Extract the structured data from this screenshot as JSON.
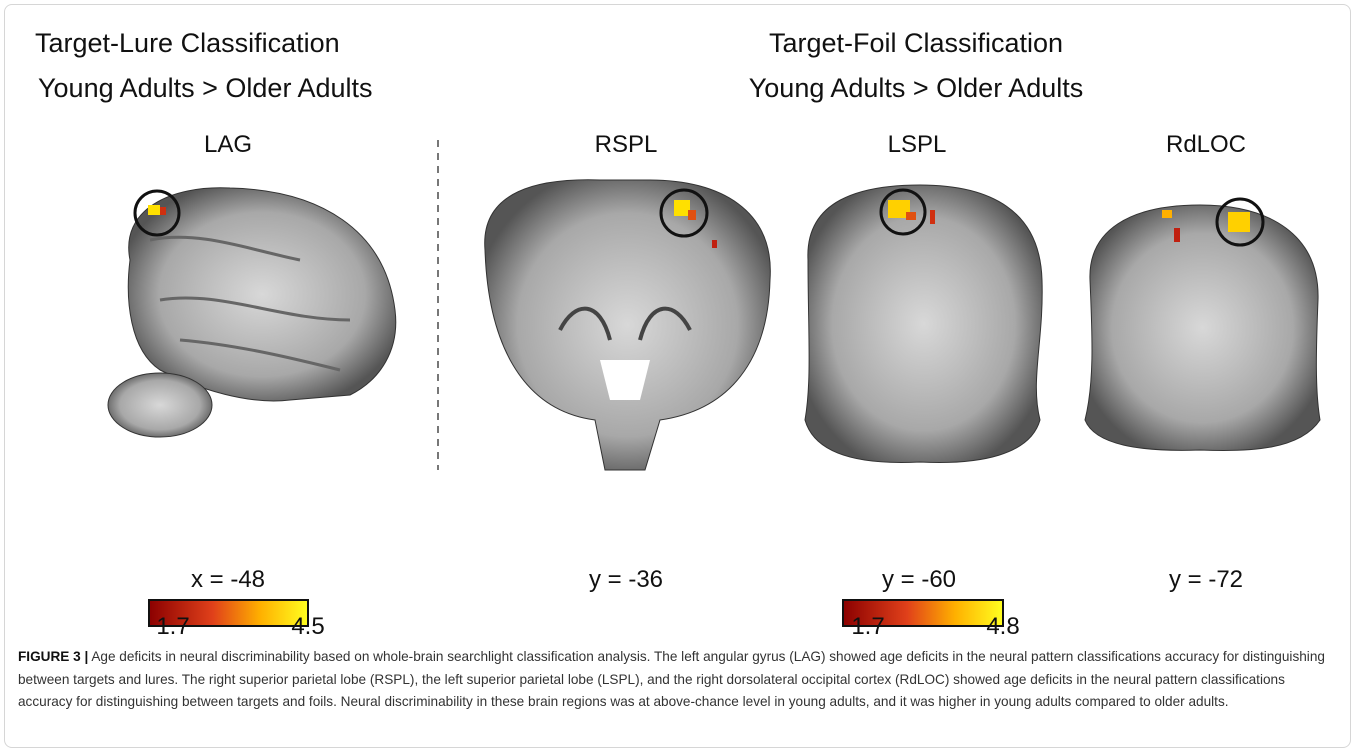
{
  "panels": [
    {
      "title": "Target-Lure Classification",
      "subtitle": "Young Adults > Older Adults",
      "images": [
        {
          "label": "LAG",
          "coord": "x = -48"
        }
      ],
      "colorbar": {
        "min": 1.7,
        "max": 4.5
      }
    },
    {
      "title": "Target-Foil Classification",
      "subtitle": "Young Adults > Older Adults",
      "images": [
        {
          "label": "RSPL",
          "coord": "y = -36"
        },
        {
          "label": "LSPL",
          "coord": "y = -60"
        },
        {
          "label": "RdLOC",
          "coord": "y = -72"
        }
      ],
      "colorbar": {
        "min": 1.7,
        "max": 4.8
      }
    }
  ],
  "caption": {
    "label": "FIGURE 3 |",
    "text": "Age deficits in neural discriminability based on whole-brain searchlight classification analysis. The left angular gyrus (LAG) showed age deficits in the neural pattern classifications accuracy for distinguishing between targets and lures. The right superior parietal lobe (RSPL), the left superior parietal lobe (LSPL), and the right dorsolateral occipital cortex (RdLOC) showed age deficits in the neural pattern classifications accuracy for distinguishing between targets and foils. Neural discriminability in these brain regions was at above-chance level in young adults, and it was higher in young adults compared to older adults."
  }
}
